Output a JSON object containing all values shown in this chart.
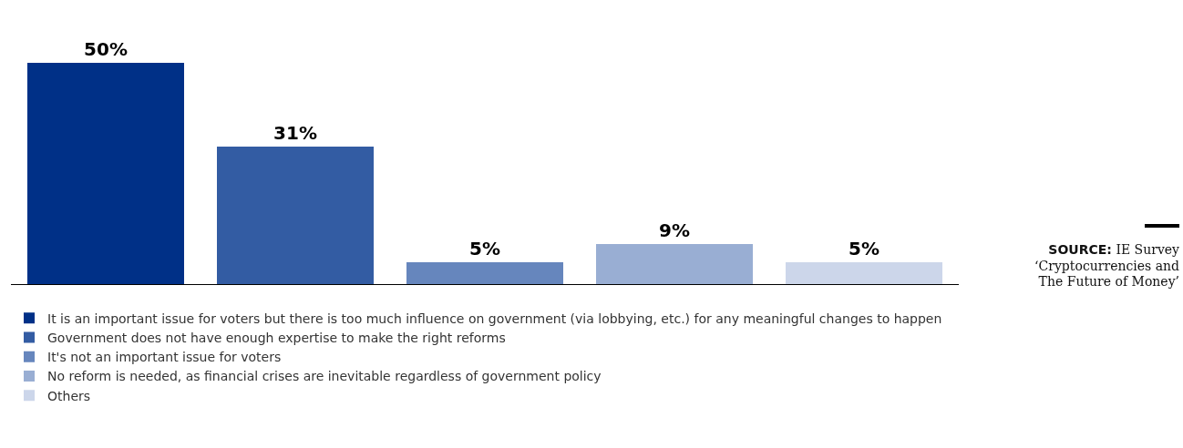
{
  "chart_data": {
    "type": "bar",
    "categories": [
      null,
      null,
      null,
      null,
      null
    ],
    "stacked": true,
    "series": [
      {
        "name": "It is an important issue for voters but there is too much influence on government (via lobbying, etc.) for any meaningful changes to happen",
        "color": "#003087",
        "values": [
          50,
          null,
          null,
          null,
          null
        ],
        "value_labels": [
          "50%",
          null,
          null,
          null,
          null
        ]
      },
      {
        "name": "Government does not have enough expertise to make the right reforms",
        "color": "#335ca3",
        "values": [
          null,
          31,
          null,
          null,
          null
        ],
        "value_labels": [
          null,
          "31%",
          null,
          null,
          null
        ]
      },
      {
        "name": "It's not an important issue for voters",
        "color": "#6686bd",
        "values": [
          null,
          null,
          5,
          null,
          null
        ],
        "value_labels": [
          null,
          null,
          "5%",
          null,
          null
        ]
      },
      {
        "name": "No reform is needed, as financial crises are inevitable regardless of government policy",
        "color": "#99aed3",
        "values": [
          null,
          null,
          null,
          9,
          null
        ],
        "value_labels": [
          null,
          null,
          null,
          "9%",
          null
        ]
      },
      {
        "name": "Others",
        "color": "#ccd6ea",
        "values": [
          null,
          null,
          null,
          null,
          5
        ],
        "value_labels": [
          null,
          null,
          null,
          null,
          "5%"
        ]
      }
    ],
    "legend": "bottom",
    "annotations": [
      "SOURCE: IE Survey ‘Cryptocurrencies and The Future of Money’"
    ]
  }
}
